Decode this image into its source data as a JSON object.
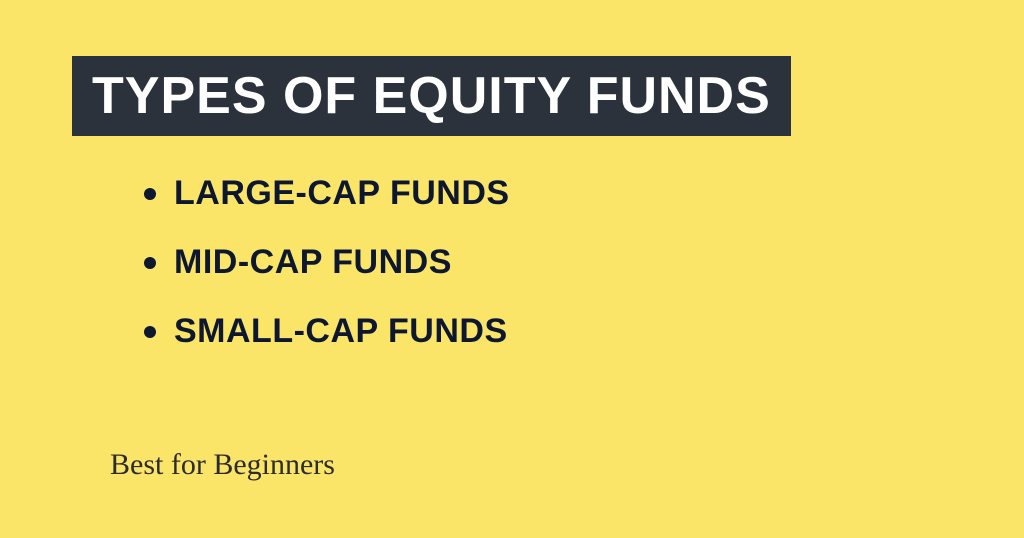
{
  "slide": {
    "background_color": "#fae569",
    "title": {
      "text": "TYPES OF EQUITY FUNDS",
      "bg_color": "#2b323b",
      "text_color": "#ffffff",
      "font_size": 52
    },
    "bullets": {
      "items": [
        {
          "text": "LARGE-CAP FUNDS"
        },
        {
          "text": "MID-CAP FUNDS"
        },
        {
          "text": "SMALL-CAP FUNDS"
        }
      ],
      "text_color": "#0d1830",
      "font_size": 34,
      "dot_size": 12,
      "dot_color": "#0d1830"
    },
    "footer": {
      "text": "Best for Beginners",
      "text_color": "#2c2c2c",
      "font_size": 30
    }
  }
}
